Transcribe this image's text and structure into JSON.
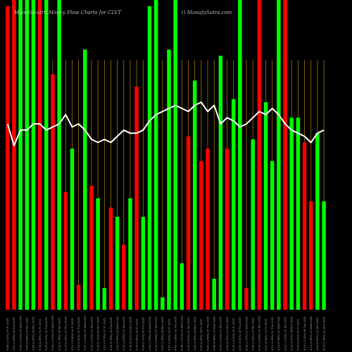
{
  "chart_data": {
    "type": "bar",
    "title": "MunafaSutra Money Flow  Charts for CLVT",
    "watermark": "() MunafaSutra.com",
    "colors": {
      "up": "#00ff00",
      "down": "#ff0000",
      "grid": "#b8860b",
      "line": "#ffffff",
      "background": "#000000"
    },
    "ylim": [
      0,
      100
    ],
    "categories": [
      "5.48 (-2.32%) 07 Fri 2025",
      "5.61 (1.63%) 06 Thu 2025",
      "5.52 (-2.13%) 05 Wed 2025",
      "5.64 (3.68%) 04 Tue 2025",
      "5.44 (1.87%) 03 Mon 2025",
      "5.34 (2.69%) 31 Fri 2025",
      "5.20 (1.17%) 30 Thu 2025",
      "5.14 (-1.53%) 29 Wed 2025",
      "5.22 (1.75%) 28 Tue 2025",
      "5.13 (0.39%) 27 Mon 2025",
      "5.11 (-0.58%) 24 Fri 2025",
      "5.14 (0.39%) 23 Thu 2025",
      "5.12 (-1.54%) 22 Wed 2025",
      "5.20 (-1.89%) 21 Tue 2025",
      "5.30 (1.73%) 20 Mon 2025",
      "5.21 (-0.76%) 17 Fri 2025",
      "5.25 (0.19%) 16 Thu 2025",
      "5.24 (2.55%) 15 Wed 2025",
      "5.11 (-4.66%) 14 Tue 2025",
      "5.36 (5.31%) 13 Mon 2025",
      "5.09 (2.62%) 10 Fri 2025",
      "4.96 (1.22%) 09 Thu 2025",
      "4.90 (7.93%) 08 Wed 2025",
      "4.54 (-0.66%) 07 Tue 2025",
      "4.57 (1.33%) 06 Mon 2025",
      "4.51 (1.81%) 03 Fri 2025",
      "4.43 (-2.85%) 02 Thu 2025",
      "4.56 (-1.51%) 01 Wed 2025",
      "4.63 (0.87%) 30 Tue 2025",
      "4.59 (1.55%) 29 Mon 2025",
      "4.52 (2.49%) 26 Fri 2025",
      "4.41 (-1.56%) 25 Thu 2025",
      "4.48 (3.46%) 24 Wed 2025",
      "4.33 (-0.23%) 23 Tue 2025",
      "4.34 (0.70%) 22 Mon 2025",
      "4.31 (-4.22%) 19 Fri 2025",
      "4.50 (3.92%) 18 Thu 2025",
      "4.33 (1.17%) 17 Wed 2025",
      "4.28 (3.13%) 16 Tue 2025",
      "4.15 (-1.66%) 15 Mon 2025",
      "4.22 (0.24%) 12 Fri 2025",
      "4.21 (1.69%) 11 Thu 2025",
      "4.14 (0.98%) 10 Wed 2025",
      "4.10 (-2.15%) 09 Tue 2025",
      "4.19 (3.71%) 08 Mon 2025",
      "4.04 (1.00%) 05 Fri 2025",
      "4.00 (-3.15%) 04 Thu 2025",
      "4.13 (1.98%) 03 Wed 2025",
      "4.05 (0.50%) 02 Tue 2025",
      "4.03 (1.25%) 01 Mon 2025"
    ],
    "series": [
      {
        "role": "bars",
        "values": [
          98,
          100,
          100,
          100,
          100,
          100,
          100,
          76,
          100,
          38,
          52,
          8,
          84,
          40,
          36,
          7,
          33,
          30,
          21,
          36,
          72,
          30,
          98,
          100,
          4,
          84,
          100,
          15,
          56,
          74,
          48,
          52,
          10,
          82,
          52,
          68,
          100,
          7,
          55,
          100,
          67,
          48,
          100,
          100,
          62,
          62,
          54,
          35,
          57,
          35
        ],
        "direction": [
          "down",
          "down",
          "up",
          "up",
          "up",
          "down",
          "up",
          "down",
          "up",
          "down",
          "up",
          "down",
          "up",
          "down",
          "up",
          "up",
          "down",
          "up",
          "down",
          "up",
          "down",
          "up",
          "up",
          "up",
          "up",
          "up",
          "up",
          "up",
          "down",
          "up",
          "down",
          "down",
          "up",
          "up",
          "down",
          "up",
          "up",
          "down",
          "up",
          "down",
          "up",
          "up",
          "up",
          "down",
          "up",
          "up",
          "down",
          "down",
          "up",
          "up"
        ]
      },
      {
        "role": "money-flow-line",
        "values": [
          60,
          53,
          58,
          58,
          60,
          60,
          58,
          59,
          60,
          63,
          59,
          60,
          58,
          55,
          54,
          55,
          54,
          56,
          58,
          57,
          57,
          58,
          61,
          63,
          64,
          65,
          66,
          65,
          64,
          66,
          67,
          64,
          66,
          60,
          62,
          61,
          59,
          60,
          62,
          64,
          63,
          65,
          63,
          60,
          58,
          57,
          56,
          54,
          57,
          58
        ]
      }
    ]
  }
}
